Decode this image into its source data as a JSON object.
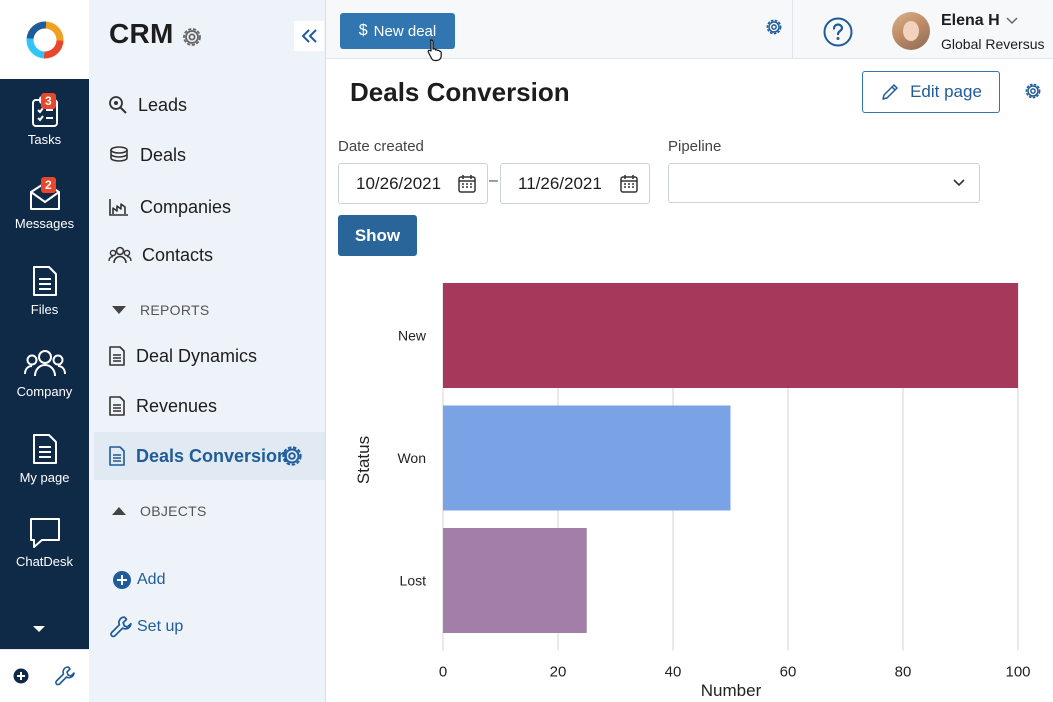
{
  "rail": {
    "items": [
      {
        "label": "Tasks",
        "badge": "3",
        "icon": "tasks-icon"
      },
      {
        "label": "Messages",
        "badge": "2",
        "icon": "messages-icon"
      },
      {
        "label": "Files",
        "badge": null,
        "icon": "files-icon"
      },
      {
        "label": "Company",
        "badge": null,
        "icon": "company-icon"
      },
      {
        "label": "My page",
        "badge": null,
        "icon": "my-page-icon"
      },
      {
        "label": "ChatDesk",
        "badge": null,
        "icon": "chatdesk-icon"
      }
    ]
  },
  "sidebar": {
    "title": "CRM",
    "items": [
      {
        "label": "Leads",
        "icon": "leads-icon"
      },
      {
        "label": "Deals",
        "icon": "deals-icon"
      },
      {
        "label": "Companies",
        "icon": "companies-icon"
      },
      {
        "label": "Contacts",
        "icon": "contacts-icon"
      }
    ],
    "reports_label": "REPORTS",
    "reports": [
      {
        "label": "Deal Dynamics"
      },
      {
        "label": "Revenues"
      },
      {
        "label": "Deals Conversion",
        "active": true
      }
    ],
    "objects_label": "OBJECTS",
    "add_label": "Add",
    "setup_label": "Set up"
  },
  "topbar": {
    "new_deal_label": "New deal",
    "user_name": "Elena H",
    "user_org": "Global Reversus"
  },
  "main": {
    "title": "Deals Conversion",
    "edit_label": "Edit page",
    "date_label": "Date created",
    "date_from": "10/26/2021",
    "date_to": "11/26/2021",
    "pipeline_label": "Pipeline",
    "pipeline_value": "",
    "show_label": "Show"
  },
  "colors": {
    "accent": "#3176b0",
    "rail": "#0f2a47",
    "sidebar": "#eef3fa"
  },
  "chart_data": {
    "type": "bar",
    "orientation": "horizontal",
    "categories": [
      "New",
      "Won",
      "Lost"
    ],
    "values": [
      100,
      50,
      25
    ],
    "colors": [
      "#a6385c",
      "#7aa3e5",
      "#a27ea8"
    ],
    "xlabel": "Number",
    "ylabel": "Status",
    "xlim": [
      0,
      100
    ],
    "xticks": [
      0,
      20,
      40,
      60,
      80,
      100
    ],
    "grid": true
  }
}
